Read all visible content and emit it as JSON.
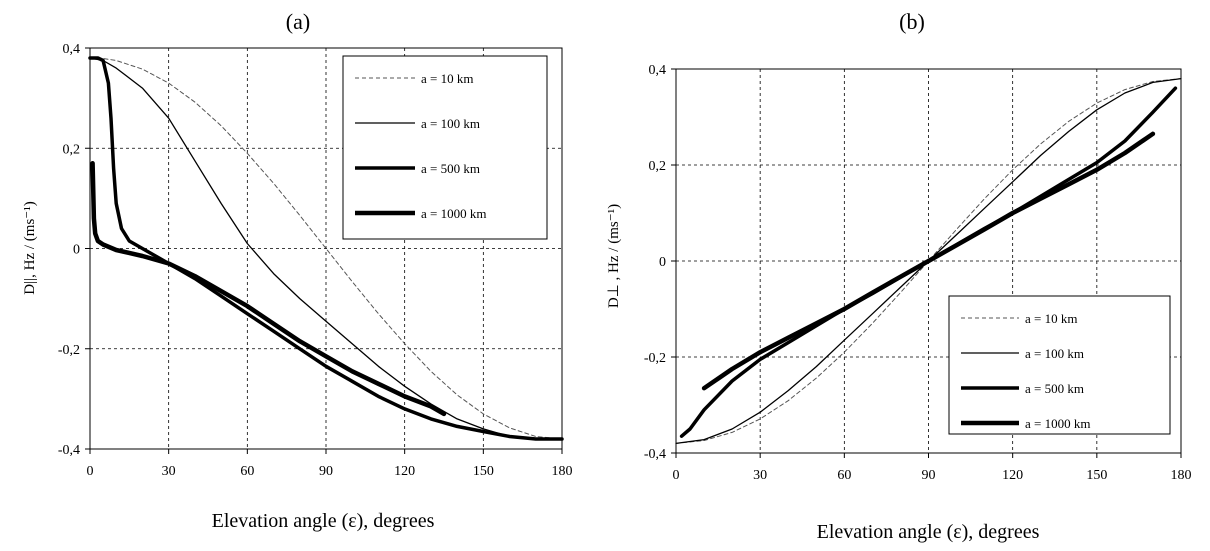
{
  "chart_data": [
    {
      "type": "line",
      "panel_label": "(a)",
      "xlabel": "Elevation angle (ε), degrees",
      "ylabel": "D||, Hz / (ms⁻¹)",
      "xlim": [
        0,
        180
      ],
      "ylim": [
        -0.4,
        0.4
      ],
      "xticks": [
        0,
        30,
        60,
        90,
        120,
        150,
        180
      ],
      "yticks": [
        -0.4,
        -0.2,
        0,
        0.2,
        0.4
      ],
      "ytick_labels": [
        "-0,4",
        "-0,2",
        "0",
        "0,2",
        "0,4"
      ],
      "grid": true,
      "legend_position": "top-right",
      "series": [
        {
          "name": "a = 10 km",
          "style": "dashed",
          "width": 1,
          "color": "#555555",
          "x": [
            0,
            5,
            10,
            20,
            30,
            40,
            50,
            60,
            70,
            80,
            90,
            100,
            110,
            120,
            130,
            140,
            150,
            160,
            170,
            180
          ],
          "y": [
            0.38,
            0.379,
            0.375,
            0.358,
            0.33,
            0.292,
            0.245,
            0.19,
            0.13,
            0.066,
            0,
            -0.066,
            -0.13,
            -0.19,
            -0.245,
            -0.292,
            -0.33,
            -0.358,
            -0.375,
            -0.38
          ]
        },
        {
          "name": "a = 100 km",
          "style": "solid",
          "width": 1.3,
          "color": "#000000",
          "x": [
            0,
            5,
            10,
            20,
            30,
            40,
            50,
            60,
            70,
            80,
            90,
            100,
            110,
            120,
            130,
            140,
            150,
            160,
            170,
            180
          ],
          "y": [
            0.38,
            0.375,
            0.36,
            0.32,
            0.26,
            0.175,
            0.09,
            0.01,
            -0.05,
            -0.1,
            -0.145,
            -0.19,
            -0.235,
            -0.275,
            -0.31,
            -0.34,
            -0.36,
            -0.375,
            -0.38,
            -0.38
          ]
        },
        {
          "name": "a = 500 km",
          "style": "solid",
          "width": 3.5,
          "color": "#000000",
          "x": [
            0,
            3,
            5,
            7,
            8,
            9,
            10,
            12,
            15,
            20,
            30,
            40,
            50,
            60,
            70,
            80,
            90,
            100,
            110,
            120,
            130,
            140,
            150,
            160,
            170,
            180
          ],
          "y": [
            0.38,
            0.38,
            0.375,
            0.33,
            0.26,
            0.16,
            0.09,
            0.04,
            0.015,
            0.0,
            -0.03,
            -0.06,
            -0.095,
            -0.13,
            -0.165,
            -0.2,
            -0.235,
            -0.265,
            -0.295,
            -0.32,
            -0.34,
            -0.355,
            -0.365,
            -0.375,
            -0.38,
            -0.38
          ]
        },
        {
          "name": "a = 1000 km",
          "style": "solid",
          "width": 4.5,
          "color": "#000000",
          "x": [
            1,
            1.5,
            2,
            3,
            5,
            10,
            20,
            30,
            40,
            50,
            60,
            70,
            80,
            90,
            100,
            110,
            120,
            130,
            135
          ],
          "y": [
            0.17,
            0.06,
            0.03,
            0.015,
            0.008,
            -0.003,
            -0.015,
            -0.03,
            -0.055,
            -0.085,
            -0.115,
            -0.15,
            -0.185,
            -0.215,
            -0.245,
            -0.27,
            -0.295,
            -0.315,
            -0.33
          ]
        }
      ]
    },
    {
      "type": "line",
      "panel_label": "(b)",
      "xlabel": "Elevation angle (ε), degrees",
      "ylabel": "D⊥ , Hz / (ms⁻¹)",
      "xlim": [
        0,
        180
      ],
      "ylim": [
        -0.4,
        0.4
      ],
      "xticks": [
        0,
        30,
        60,
        90,
        120,
        150,
        180
      ],
      "yticks": [
        -0.4,
        -0.2,
        0,
        0.2,
        0.4
      ],
      "ytick_labels": [
        "-0,4",
        "-0,2",
        "0",
        "0,2",
        "0,4"
      ],
      "grid": true,
      "legend_position": "bottom-right",
      "series": [
        {
          "name": "a = 10 km",
          "style": "dashed",
          "width": 1,
          "color": "#555555",
          "x": [
            0,
            10,
            20,
            30,
            40,
            50,
            60,
            70,
            80,
            90,
            100,
            110,
            120,
            130,
            140,
            150,
            160,
            170,
            180
          ],
          "y": [
            -0.38,
            -0.374,
            -0.357,
            -0.329,
            -0.291,
            -0.244,
            -0.19,
            -0.13,
            -0.066,
            0,
            0.066,
            0.13,
            0.19,
            0.244,
            0.291,
            0.329,
            0.357,
            0.374,
            0.38
          ]
        },
        {
          "name": "a = 100 km",
          "style": "solid",
          "width": 1.3,
          "color": "#000000",
          "x": [
            0,
            10,
            20,
            30,
            40,
            50,
            60,
            70,
            80,
            90,
            100,
            110,
            120,
            130,
            140,
            150,
            160,
            170,
            180
          ],
          "y": [
            -0.38,
            -0.372,
            -0.35,
            -0.315,
            -0.27,
            -0.22,
            -0.165,
            -0.11,
            -0.055,
            0,
            0.055,
            0.11,
            0.165,
            0.22,
            0.27,
            0.315,
            0.35,
            0.372,
            0.38
          ]
        },
        {
          "name": "a = 500 km",
          "style": "solid",
          "width": 3.5,
          "color": "#000000",
          "x": [
            2,
            5,
            10,
            20,
            30,
            40,
            50,
            60,
            70,
            80,
            90,
            100,
            110,
            120,
            130,
            140,
            150,
            160,
            170,
            178
          ],
          "y": [
            -0.365,
            -0.35,
            -0.31,
            -0.25,
            -0.205,
            -0.17,
            -0.135,
            -0.1,
            -0.068,
            -0.034,
            0,
            0.034,
            0.068,
            0.1,
            0.135,
            0.17,
            0.205,
            0.25,
            0.31,
            0.36
          ]
        },
        {
          "name": "a = 1000 km",
          "style": "solid",
          "width": 4.5,
          "color": "#000000",
          "x": [
            10,
            15,
            20,
            30,
            40,
            50,
            60,
            70,
            80,
            90,
            100,
            110,
            120,
            130,
            140,
            150,
            160,
            165,
            170
          ],
          "y": [
            -0.265,
            -0.245,
            -0.225,
            -0.19,
            -0.16,
            -0.13,
            -0.1,
            -0.066,
            -0.033,
            0,
            0.033,
            0.066,
            0.1,
            0.13,
            0.16,
            0.19,
            0.225,
            0.245,
            0.265
          ]
        }
      ]
    }
  ]
}
